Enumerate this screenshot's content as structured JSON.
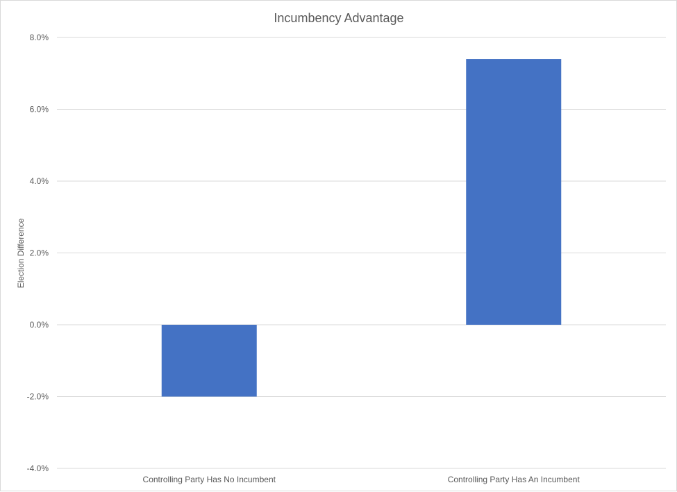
{
  "chart_data": {
    "type": "bar",
    "title": "Incumbency Advantage",
    "xlabel": "",
    "ylabel": "Election Difference",
    "categories": [
      "Controlling Party Has No Incumbent",
      "Controlling Party Has An Incumbent"
    ],
    "series": [
      {
        "values": [
          -2.0,
          7.4
        ]
      }
    ],
    "ylim": [
      -4.0,
      8.0
    ],
    "yticks": [
      -4.0,
      -2.0,
      0.0,
      2.0,
      4.0,
      6.0,
      8.0
    ],
    "ytick_labels": [
      "-4.0%",
      "-2.0%",
      "0.0%",
      "2.0%",
      "4.0%",
      "6.0%",
      "8.0%"
    ],
    "grid": true,
    "legend": "none",
    "colors": {
      "bar": "#4472c4",
      "grid": "#d9d9d9",
      "text": "#595959"
    }
  }
}
